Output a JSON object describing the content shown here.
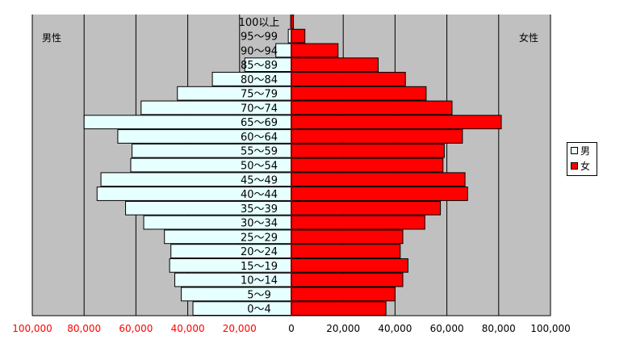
{
  "labels": {
    "male_corner": "男性",
    "female_corner": "女性"
  },
  "legend": [
    {
      "name": "男",
      "color": "#e6ffff"
    },
    {
      "name": "女",
      "color": "#ff0000"
    }
  ],
  "chart_data": {
    "type": "bar",
    "orientation": "horizontal-diverging",
    "title": "",
    "xlabel": "",
    "ylabel": "",
    "xlim": [
      -100000,
      100000
    ],
    "x_ticks": [
      {
        "value": -100000,
        "label": "100,000"
      },
      {
        "value": -80000,
        "label": "80,000"
      },
      {
        "value": -60000,
        "label": "60,000"
      },
      {
        "value": -40000,
        "label": "40,000"
      },
      {
        "value": -20000,
        "label": "20,000"
      },
      {
        "value": 0,
        "label": "0"
      },
      {
        "value": 20000,
        "label": "20,000"
      },
      {
        "value": 40000,
        "label": "40,000"
      },
      {
        "value": 60000,
        "label": "60,000"
      },
      {
        "value": 80000,
        "label": "80,000"
      },
      {
        "value": 100000,
        "label": "100,000"
      }
    ],
    "categories": [
      "0～4",
      "5～9",
      "10～14",
      "15～19",
      "20～24",
      "25～29",
      "30～34",
      "35～39",
      "40～44",
      "45～49",
      "50～54",
      "55～59",
      "60～64",
      "65～69",
      "70～74",
      "75～79",
      "80～84",
      "85～89",
      "90～94",
      "95～99",
      "100以上"
    ],
    "series": [
      {
        "name": "男",
        "color": "#e6ffff",
        "values": [
          38000,
          42500,
          45000,
          47000,
          46500,
          49000,
          57000,
          64000,
          75000,
          73500,
          62000,
          61500,
          67000,
          80000,
          58000,
          44000,
          30500,
          18000,
          6000,
          1200,
          300
        ]
      },
      {
        "name": "女",
        "color": "#ff0000",
        "values": [
          36500,
          40000,
          43000,
          45000,
          42000,
          43000,
          51500,
          57500,
          68000,
          67000,
          58500,
          59000,
          66000,
          81000,
          62000,
          52000,
          44000,
          33500,
          18000,
          5200,
          800
        ]
      }
    ],
    "grid": true,
    "legend_position": "right"
  }
}
